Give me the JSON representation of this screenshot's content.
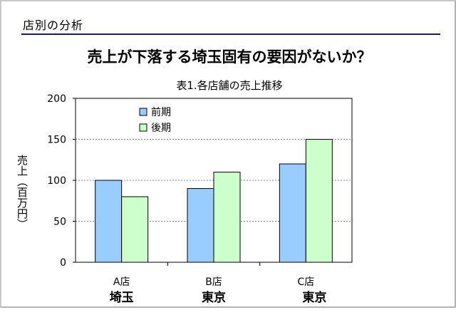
{
  "section": {
    "title": "店別の分析"
  },
  "headline": "売上が下落する埼玉固有の要因がないか？",
  "chart_data": {
    "type": "bar",
    "title": "表1.各店舗の売上推移",
    "ylabel": "売上（百万円）",
    "xlabel": "",
    "categories": [
      "A店",
      "B店",
      "C店"
    ],
    "category_regions": [
      "埼玉",
      "東京",
      "東京"
    ],
    "series": [
      {
        "name": "前期",
        "values": [
          100,
          90,
          120
        ],
        "color": "#99ccff"
      },
      {
        "name": "後期",
        "values": [
          80,
          110,
          150
        ],
        "color": "#ccffcc"
      }
    ],
    "ylim": [
      0,
      200
    ],
    "yticks": [
      0,
      50,
      100,
      150,
      200
    ],
    "grid": true,
    "legend_position": "top-left"
  }
}
